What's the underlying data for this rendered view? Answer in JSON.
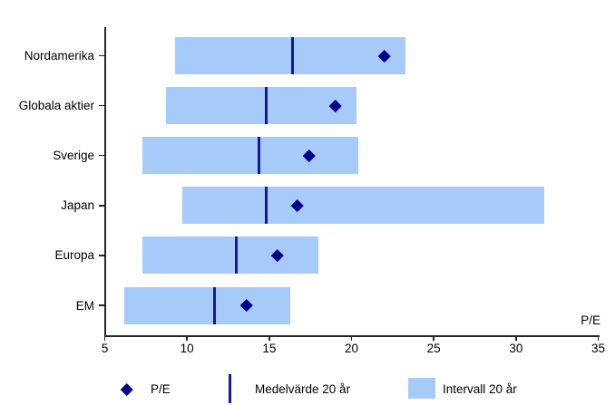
{
  "chart_data": {
    "type": "bar",
    "subtype": "horizontal-range-bar",
    "title": "",
    "xlabel": "P/E",
    "ylabel": "",
    "xlim": [
      5,
      35
    ],
    "x_ticks": [
      5,
      10,
      15,
      20,
      25,
      30,
      35
    ],
    "grid": false,
    "legend_position": "bottom",
    "categories": [
      "Nordamerika",
      "Globala aktier",
      "Sverige",
      "Japan",
      "Europa",
      "EM"
    ],
    "series": [
      {
        "name": "P/E",
        "marker": "diamond",
        "values": [
          22.0,
          19.0,
          17.4,
          16.7,
          15.5,
          13.6
        ]
      },
      {
        "name": "Medelvärde 20 år",
        "marker": "vertical-line",
        "values": [
          16.4,
          14.8,
          14.4,
          14.8,
          13.0,
          11.7
        ]
      },
      {
        "name": "Intervall 20 år",
        "marker": "range-bar",
        "low": [
          9.3,
          8.7,
          7.3,
          9.7,
          7.3,
          6.2
        ],
        "high": [
          23.3,
          20.3,
          20.4,
          31.7,
          18.0,
          16.3
        ]
      }
    ]
  },
  "legend": {
    "items": [
      {
        "icon": "diamond-icon",
        "label": "P/E"
      },
      {
        "icon": "vline-icon",
        "label": "Medelvärde 20 år"
      },
      {
        "icon": "box-icon",
        "label": "Intervall 20 år"
      }
    ]
  },
  "colors": {
    "interval_bar": "#A7CBF8",
    "diamond": "#00008B",
    "mean_line": "#16169E",
    "axis": "#262626",
    "text": "#000000"
  }
}
